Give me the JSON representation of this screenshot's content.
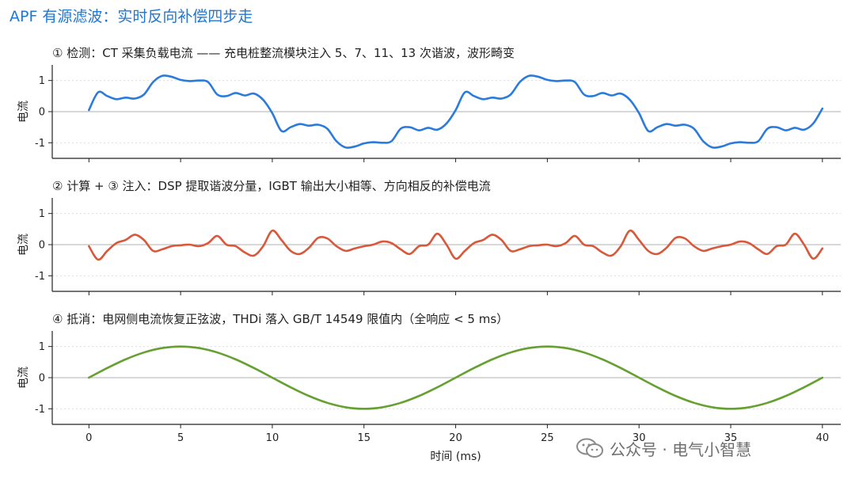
{
  "page": {
    "title": "APF 有源滤波：实时反向补偿四步走",
    "watermark": "公众号 · 电气小智慧"
  },
  "chart_data": [
    {
      "type": "line",
      "title": "① 检测：CT 采集负载电流 —— 充电桩整流模块注入 5、7、11、13 次谐波，波形畸变",
      "ylabel": "电流",
      "xlabel": "",
      "xlim": [
        -2,
        41
      ],
      "ylim": [
        -1.5,
        1.5
      ],
      "yticks": [
        1,
        0,
        -1
      ],
      "ytick_labels": [
        "1",
        "0",
        "-1"
      ],
      "xticks": [
        0,
        5,
        10,
        15,
        20,
        25,
        30,
        35,
        40
      ],
      "xtick_labels": [],
      "grid": "horizontal-dotted",
      "zero_line": true,
      "color": "#2a7bdc",
      "series": [
        {
          "x": [
            0,
            0.5,
            1,
            1.5,
            2,
            2.5,
            3,
            3.5,
            4,
            4.5,
            5,
            5.5,
            6,
            6.5,
            7,
            7.5,
            8,
            8.5,
            9,
            9.5,
            10,
            10.5,
            11,
            11.5,
            12,
            12.5,
            13,
            13.5,
            14,
            14.5,
            15,
            15.5,
            16,
            16.5,
            17,
            17.5,
            18,
            18.5,
            19,
            19.5,
            20,
            20.5,
            21,
            21.5,
            22,
            22.5,
            23,
            23.5,
            24,
            24.5,
            25,
            25.5,
            26,
            26.5,
            27,
            27.5,
            28,
            28.5,
            29,
            29.5,
            30,
            30.5,
            31,
            31.5,
            32,
            32.5,
            33,
            33.5,
            34,
            34.5,
            35,
            35.5,
            36,
            36.5,
            37,
            37.5,
            38,
            38.5,
            39,
            39.5,
            40
          ],
          "values": [
            0.05,
            0.62,
            0.5,
            0.4,
            0.45,
            0.42,
            0.55,
            0.95,
            1.15,
            1.12,
            1.02,
            0.98,
            1.0,
            0.95,
            0.55,
            0.5,
            0.6,
            0.52,
            0.58,
            0.38,
            -0.05,
            -0.62,
            -0.5,
            -0.4,
            -0.45,
            -0.42,
            -0.55,
            -0.95,
            -1.15,
            -1.12,
            -1.02,
            -0.98,
            -1.0,
            -0.95,
            -0.55,
            -0.5,
            -0.6,
            -0.52,
            -0.58,
            -0.38,
            0.05,
            0.62,
            0.5,
            0.4,
            0.45,
            0.42,
            0.55,
            0.95,
            1.15,
            1.12,
            1.02,
            0.98,
            1.0,
            0.95,
            0.55,
            0.5,
            0.6,
            0.52,
            0.58,
            0.38,
            -0.05,
            -0.62,
            -0.5,
            -0.4,
            -0.45,
            -0.42,
            -0.55,
            -0.95,
            -1.15,
            -1.12,
            -1.02,
            -0.98,
            -1.0,
            -0.95,
            -0.55,
            -0.5,
            -0.6,
            -0.52,
            -0.58,
            -0.38,
            0.1
          ]
        }
      ]
    },
    {
      "type": "line",
      "title": "② 计算 + ③ 注入：DSP 提取谐波分量，IGBT 输出大小相等、方向相反的补偿电流",
      "ylabel": "电流",
      "xlabel": "",
      "xlim": [
        -2,
        41
      ],
      "ylim": [
        -1.5,
        1.5
      ],
      "yticks": [
        1,
        0,
        -1
      ],
      "ytick_labels": [
        "1",
        "0",
        "-1"
      ],
      "xticks": [
        0,
        5,
        10,
        15,
        20,
        25,
        30,
        35,
        40
      ],
      "xtick_labels": [],
      "grid": "horizontal-dotted",
      "zero_line": true,
      "color": "#d9583a",
      "series": [
        {
          "x": [
            0,
            0.5,
            1,
            1.5,
            2,
            2.5,
            3,
            3.5,
            4,
            4.5,
            5,
            5.5,
            6,
            6.5,
            7,
            7.5,
            8,
            8.5,
            9,
            9.5,
            10,
            10.5,
            11,
            11.5,
            12,
            12.5,
            13,
            13.5,
            14,
            14.5,
            15,
            15.5,
            16,
            16.5,
            17,
            17.5,
            18,
            18.5,
            19,
            19.5,
            20,
            20.5,
            21,
            21.5,
            22,
            22.5,
            23,
            23.5,
            24,
            24.5,
            25,
            25.5,
            26,
            26.5,
            27,
            27.5,
            28,
            28.5,
            29,
            29.5,
            30,
            30.5,
            31,
            31.5,
            32,
            32.5,
            33,
            33.5,
            34,
            34.5,
            35,
            35.5,
            36,
            36.5,
            37,
            37.5,
            38,
            38.5,
            39,
            39.5,
            40
          ],
          "values": [
            -0.05,
            -0.48,
            -0.2,
            0.05,
            0.15,
            0.32,
            0.15,
            -0.2,
            -0.15,
            -0.05,
            -0.02,
            0.0,
            -0.05,
            0.05,
            0.28,
            0.0,
            -0.05,
            -0.25,
            -0.35,
            -0.05,
            0.45,
            0.15,
            -0.2,
            -0.3,
            -0.1,
            0.22,
            0.2,
            -0.05,
            -0.2,
            -0.12,
            -0.05,
            0.0,
            0.1,
            0.05,
            -0.15,
            -0.3,
            -0.05,
            0.0,
            0.35,
            0.0,
            -0.45,
            -0.2,
            0.05,
            0.15,
            0.32,
            0.15,
            -0.2,
            -0.15,
            -0.05,
            -0.02,
            0.0,
            -0.05,
            0.05,
            0.28,
            0.0,
            -0.05,
            -0.25,
            -0.35,
            -0.05,
            0.45,
            0.15,
            -0.2,
            -0.3,
            -0.1,
            0.22,
            0.2,
            -0.05,
            -0.2,
            -0.12,
            -0.05,
            0.0,
            0.1,
            0.05,
            -0.15,
            -0.3,
            -0.05,
            0.0,
            0.35,
            0.0,
            -0.45,
            -0.12
          ]
        }
      ]
    },
    {
      "type": "line",
      "title": "④ 抵消：电网侧电流恢复正弦波，THDi 落入 GB/T 14549 限值内（全响应 < 5 ms）",
      "ylabel": "电流",
      "xlabel": "时间 (ms)",
      "xlim": [
        -2,
        41
      ],
      "ylim": [
        -1.5,
        1.5
      ],
      "yticks": [
        1,
        0,
        -1
      ],
      "ytick_labels": [
        "1",
        "0",
        "-1"
      ],
      "xticks": [
        0,
        5,
        10,
        15,
        20,
        25,
        30,
        35,
        40
      ],
      "xtick_labels": [
        "0",
        "5",
        "10",
        "15",
        "20",
        "25",
        "30",
        "35",
        "40"
      ],
      "grid": "horizontal-dotted",
      "zero_line": true,
      "color": "#65a030",
      "series": [
        {
          "x": [
            0,
            1,
            2,
            3,
            4,
            5,
            6,
            7,
            8,
            9,
            10,
            11,
            12,
            13,
            14,
            15,
            16,
            17,
            18,
            19,
            20,
            21,
            22,
            23,
            24,
            25,
            26,
            27,
            28,
            29,
            30,
            31,
            32,
            33,
            34,
            35,
            36,
            37,
            38,
            39,
            40
          ],
          "values": [
            0,
            0.309,
            0.588,
            0.809,
            0.951,
            1,
            0.951,
            0.809,
            0.588,
            0.309,
            0,
            -0.309,
            -0.588,
            -0.809,
            -0.951,
            -1,
            -0.951,
            -0.809,
            -0.588,
            -0.309,
            0,
            0.309,
            0.588,
            0.809,
            0.951,
            1,
            0.951,
            0.809,
            0.588,
            0.309,
            0,
            -0.309,
            -0.588,
            -0.809,
            -0.951,
            -1,
            -0.951,
            -0.809,
            -0.588,
            -0.309,
            0
          ]
        }
      ]
    }
  ]
}
